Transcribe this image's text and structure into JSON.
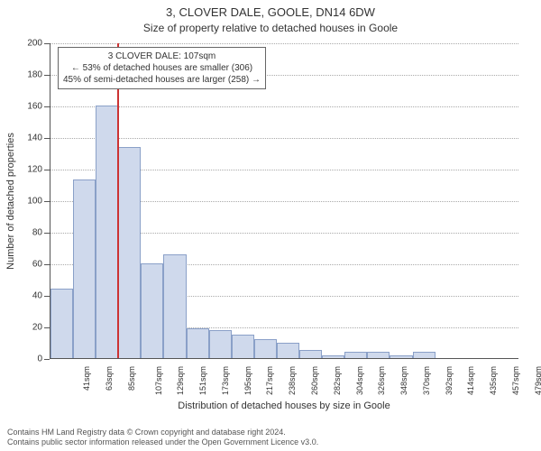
{
  "title_main": "3, CLOVER DALE, GOOLE, DN14 6DW",
  "title_sub": "Size of property relative to detached houses in Goole",
  "y_label": "Number of detached properties",
  "x_label": "Distribution of detached houses by size in Goole",
  "annotation": {
    "line1": "3 CLOVER DALE: 107sqm",
    "line2": "← 53% of detached houses are smaller (306)",
    "line3": "45% of semi-detached houses are larger (258) →"
  },
  "chart": {
    "type": "histogram",
    "ylim": [
      0,
      200
    ],
    "ytick_step": 20,
    "bar_fill": "#cfd9ec",
    "bar_stroke": "#8aa0c8",
    "grid_color": "#aaaaaa",
    "marker_color": "#cc3333",
    "marker_x_index": 3,
    "categories": [
      "41sqm",
      "63sqm",
      "85sqm",
      "107sqm",
      "129sqm",
      "151sqm",
      "173sqm",
      "195sqm",
      "217sqm",
      "238sqm",
      "260sqm",
      "282sqm",
      "304sqm",
      "326sqm",
      "348sqm",
      "370sqm",
      "392sqm",
      "414sqm",
      "435sqm",
      "457sqm",
      "479sqm"
    ],
    "values": [
      44,
      113,
      160,
      134,
      60,
      66,
      19,
      18,
      15,
      12,
      10,
      5,
      2,
      4,
      4,
      2,
      4,
      0,
      0,
      0,
      0
    ]
  },
  "attribution": {
    "line1": "Contains HM Land Registry data © Crown copyright and database right 2024.",
    "line2": "Contains public sector information released under the Open Government Licence v3.0."
  }
}
